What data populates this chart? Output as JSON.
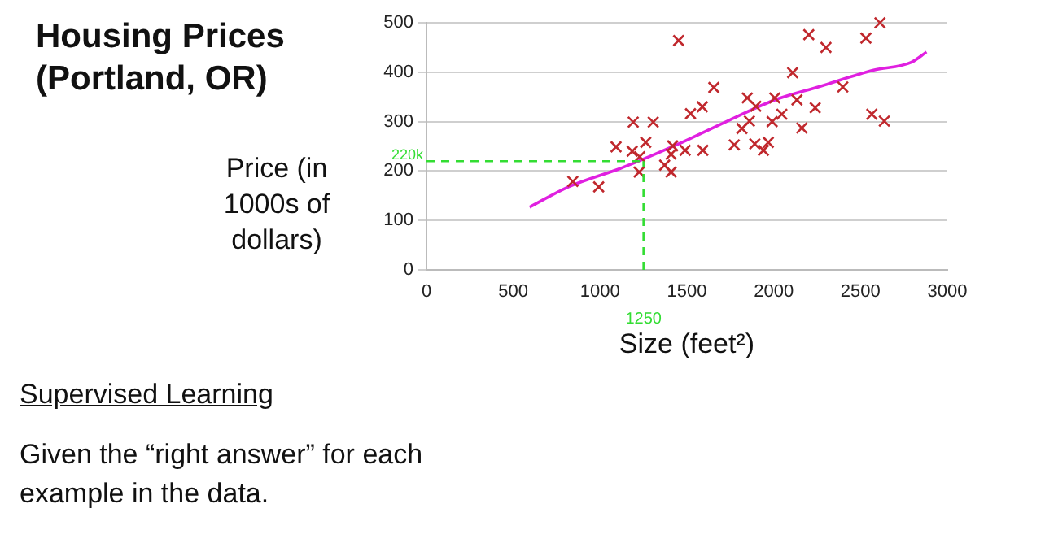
{
  "chart_data": {
    "type": "scatter",
    "title": "Housing Prices (Portland, OR)",
    "xlabel": "Size (feet²)",
    "ylabel": "Price (in 1000s of dollars)",
    "annotations": [
      "Supervised Learning",
      "Given the “right answer” for each example in the data."
    ],
    "xlim": [
      0,
      3000
    ],
    "xticks": [
      0,
      500,
      1000,
      1500,
      2000,
      2500,
      3000
    ],
    "ylim": [
      0,
      500
    ],
    "yticks": [
      0,
      100,
      200,
      300,
      400,
      500
    ],
    "grid": "y",
    "legend": false,
    "marker": "cross",
    "series": [
      {
        "color": "#c0282d",
        "x": [
          843,
          992,
          1092,
          1191,
          1185,
          1228,
          1263,
          1225,
          1306,
          1452,
          1418,
          1409,
          1372,
          1409,
          1490,
          1592,
          1521,
          1589,
          1655,
          1773,
          1848,
          1817,
          1860,
          1897,
          1891,
          1941,
          1969,
          1991,
          2006,
          2047,
          2109,
          2134,
          2162,
          2202,
          2239,
          2301,
          2398,
          2531,
          2612,
          2565,
          2637
        ],
        "values": [
          179,
          168,
          249,
          299,
          240,
          229,
          258,
          198,
          299,
          464,
          251,
          234,
          212,
          198,
          242,
          242,
          316,
          330,
          369,
          253,
          348,
          286,
          301,
          331,
          255,
          242,
          258,
          300,
          348,
          315,
          399,
          344,
          287,
          476,
          328,
          450,
          370,
          469,
          500,
          315,
          301
        ]
      },
      {
        "type": "line",
        "color": "#e020e0",
        "marker": "none",
        "x": [
          594,
          818,
          1129,
          1440,
          1745,
          2000,
          2264,
          2575,
          2792,
          2880
        ],
        "values": [
          127,
          168,
          207,
          253,
          303,
          343,
          371,
          404,
          420,
          441
        ]
      }
    ],
    "ref_lines": [
      {
        "axis": "y",
        "value": 220,
        "label": "220k",
        "color": "#33dd33",
        "line_style": "dashed"
      },
      {
        "axis": "x",
        "value": 1250,
        "label": "1250",
        "color": "#33dd33",
        "line_style": "dashed"
      }
    ]
  }
}
